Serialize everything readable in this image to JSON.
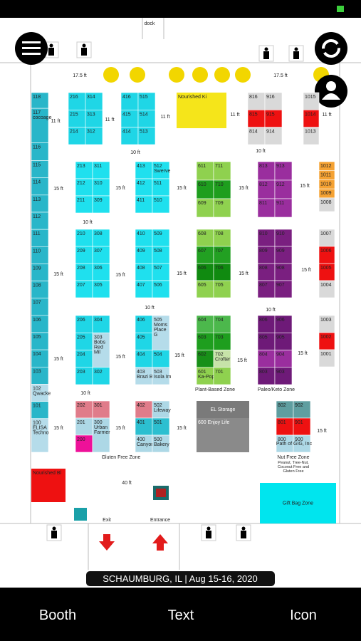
{
  "header": {
    "dock": "dock",
    "banner": "SCHAUMBURG, IL | Aug 15-16, 2020"
  },
  "tabs": [
    "Booth",
    "Text",
    "Icon"
  ],
  "blocks": [
    {
      "color": "#29b6c9",
      "columns": [
        [
          "118",
          "117 cocoage",
          "116",
          "115",
          "114",
          "113",
          "112",
          "111",
          "110",
          "109",
          "108",
          "107",
          "106",
          "105",
          "104",
          "103",
          {
            "label": "102 Qwacke",
            "color": "#b5dcea"
          },
          "101",
          {
            "label": "100 ELISA Techno",
            "color": "#b5dcea"
          }
        ]
      ]
    },
    {
      "color": "#1fd6e6",
      "columns": [
        [
          "216",
          "215",
          "214"
        ],
        [
          "314",
          "313",
          "312"
        ]
      ]
    },
    {
      "color": "#1fd6e6",
      "columns": [
        [
          "416",
          "415",
          "414"
        ],
        [
          "515",
          "514",
          "513"
        ]
      ]
    },
    {
      "color": "#d9d9d9",
      "columns": [
        [
          "816",
          {
            "label": "815",
            "color": "#ee1111"
          },
          "814"
        ],
        [
          "916",
          {
            "label": "915",
            "color": "#ee1111"
          },
          "914"
        ]
      ]
    },
    {
      "color": "#d9d9d9",
      "columns": [
        [
          "1015",
          {
            "label": "1014",
            "color": "#ee1111"
          },
          "1013"
        ]
      ]
    },
    {
      "color": "#1fe0ee",
      "columns": [
        [
          "213",
          "212",
          "211"
        ],
        [
          "311",
          "310",
          "309"
        ]
      ]
    },
    {
      "color": "#1fe0ee",
      "columns": [
        [
          "413",
          "412",
          "411"
        ],
        [
          "512 Swerve",
          "511",
          "510"
        ]
      ]
    },
    {
      "color": "#8fd14f",
      "columns": [
        [
          "611",
          {
            "label": "610",
            "color": "#1e9e1e"
          },
          "609"
        ],
        [
          "711",
          {
            "label": "710",
            "color": "#1e9e1e"
          },
          "709"
        ]
      ]
    },
    {
      "color": "#9a2e9e",
      "columns": [
        [
          "813",
          "812",
          "811"
        ],
        [
          "913",
          "912",
          "911"
        ]
      ]
    },
    {
      "color": "#f5a233",
      "columns": [
        [
          "1012",
          "1011",
          "1010",
          "1009",
          {
            "label": "1008",
            "color": "#d9d9d9"
          }
        ]
      ]
    },
    {
      "color": "#1fe0ee",
      "columns": [
        [
          "210",
          "209",
          "208",
          "207"
        ],
        [
          "308",
          "307",
          "306",
          "305"
        ]
      ]
    },
    {
      "color": "#1fe0ee",
      "columns": [
        [
          "410",
          "409",
          "408",
          "407"
        ],
        [
          "509",
          "508",
          "507",
          "506"
        ]
      ]
    },
    {
      "color": "#8fd14f",
      "columns": [
        [
          "608",
          {
            "label": "607",
            "color": "#22a022"
          },
          {
            "label": "606",
            "color": "#108a10"
          },
          "605"
        ],
        [
          "708",
          {
            "label": "707",
            "color": "#22a022"
          },
          {
            "label": "706",
            "color": "#108a10"
          },
          "705"
        ]
      ]
    },
    {
      "color": "#7a1f80",
      "columns": [
        [
          "810",
          "809",
          "808",
          "807"
        ],
        [
          "910",
          "909",
          "908",
          "907"
        ]
      ]
    },
    {
      "color": "#d9d9d9",
      "columns": [
        [
          "1007",
          {
            "label": "1006",
            "color": "#ee1111"
          },
          {
            "label": "1005",
            "color": "#ee1111"
          },
          "1004"
        ]
      ]
    },
    {
      "color": "#1fd6e6",
      "columns": [
        [
          "206",
          "205",
          "204",
          "203"
        ],
        [
          "304",
          {
            "label": "303 Bobs Red Mil",
            "color": "#b5dcea"
          },
          "302"
        ]
      ]
    },
    {
      "color": "#1fd6e6",
      "columns": [
        [
          "406",
          "405",
          "404",
          {
            "label": "403 Brazi B",
            "color": "#b5dcea"
          }
        ],
        [
          {
            "label": "505 Moms Place G",
            "color": "#b5dcea"
          },
          "504",
          {
            "label": "503 Isola Im",
            "color": "#b5dcea"
          }
        ]
      ]
    },
    {
      "color": "#8fd14f",
      "columns": [
        [
          {
            "label": "604",
            "color": "#4cb84c"
          },
          {
            "label": "603",
            "color": "#1e9e1e"
          },
          {
            "label": "602",
            "color": "#189018"
          },
          "601 Ka-Pop"
        ],
        [
          {
            "label": "704",
            "color": "#4cb84c"
          },
          {
            "label": "703",
            "color": "#1e9e1e"
          },
          {
            "label": "702 Crofter",
            "color": "#c7e3a8"
          },
          "701"
        ]
      ]
    },
    {
      "color": "#6e1a78",
      "columns": [
        [
          "806",
          "805",
          {
            "label": "804",
            "color": "#9a2e9e"
          },
          "803"
        ],
        [
          "906",
          "905",
          {
            "label": "904",
            "color": "#9a2e9e"
          },
          "903"
        ]
      ]
    },
    {
      "color": "#d9d9d9",
      "columns": [
        [
          "1003",
          {
            "label": "1002",
            "color": "#ee1111"
          },
          "1001"
        ]
      ]
    },
    {
      "color": "#add8e6",
      "columns": [
        [
          {
            "label": "202",
            "color": "#e07c8a"
          },
          "201",
          {
            "label": "200",
            "color": "#ee1199"
          }
        ],
        [
          {
            "label": "301",
            "color": "#e07c8a"
          },
          "300 Urban Farmer"
        ]
      ]
    },
    {
      "color": "#add8e6",
      "columns": [
        [
          {
            "label": "402",
            "color": "#e07c8a"
          },
          {
            "label": "401",
            "color": "#2cbfd0"
          },
          "400 Canyon"
        ],
        [
          "502 Lifeway",
          {
            "label": "501",
            "color": "#2cbfd0"
          },
          "500 Bakery"
        ]
      ]
    },
    {
      "color": "#add8e6",
      "columns": [
        [
          {
            "label": "802",
            "color": "#5f9ea0"
          },
          {
            "label": "801",
            "color": "#ee1111"
          },
          "800"
        ],
        [
          {
            "label": "902",
            "color": "#5f9ea0"
          },
          {
            "label": "901",
            "color": "#ee1111"
          },
          "900"
        ]
      ]
    }
  ],
  "rooms": [
    {
      "label": "Nourished Ki",
      "color": "#f5e51a"
    },
    {
      "label": "EL Storage",
      "color": "#7a7a7a"
    },
    {
      "label": "600 Enjoy Life",
      "color": "#8a8a8a"
    },
    {
      "label": "Nourished Bl",
      "color": "#ee1111"
    },
    {
      "label": "Gift Bag Zone",
      "color": "#00e5ee"
    }
  ],
  "zones": [
    "Gluten Free Zone",
    "Plant-Based Zone",
    "Paleo/Keto Zone",
    "Nut Free Zone",
    "Peanut, Tree-Nut, Coconut Free and Gluten Free",
    "Path of GIG, Inc",
    "40 ft",
    "Exit",
    "Entrance"
  ],
  "measures": [
    "17.5 ft",
    "17.5 ft",
    "11 ft",
    "11 ft",
    "11 ft",
    "11 ft",
    "11 ft",
    "10 ft",
    "10 ft",
    "10 ft",
    "10 ft",
    "10 ft",
    "10 ft",
    "15 ft",
    "15 ft",
    "15 ft",
    "15 ft",
    "15 ft",
    "15 ft",
    "15 ft",
    "15 ft",
    "15 ft",
    "15 ft",
    "15 ft",
    "15 ft",
    "15 ft",
    "15 ft",
    "15 ft",
    "15 ft",
    "15 ft",
    "15 ft",
    "15 ft"
  ]
}
